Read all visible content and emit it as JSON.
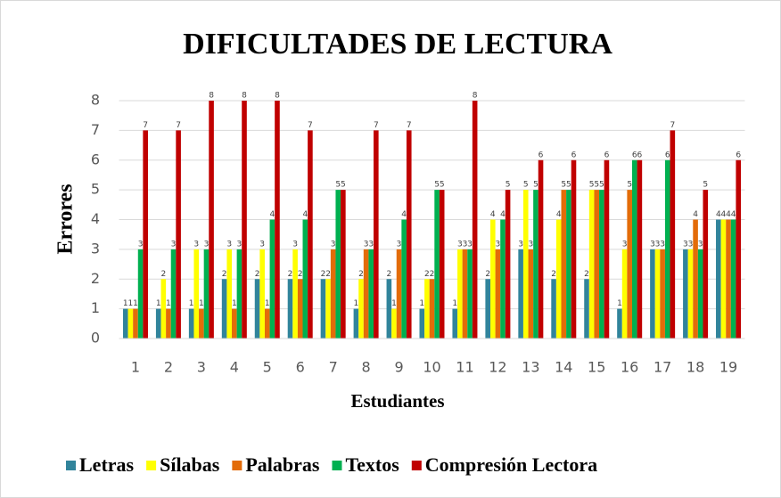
{
  "chart_data": {
    "type": "bar",
    "title": "DIFICULTADES DE LECTURA",
    "x_label": "Estudiantes",
    "y_label": "Errores",
    "categories": [
      "1",
      "2",
      "3",
      "4",
      "5",
      "6",
      "7",
      "8",
      "9",
      "10",
      "11",
      "12",
      "13",
      "14",
      "15",
      "16",
      "17",
      "18",
      "19"
    ],
    "series": [
      {
        "name": "Letras",
        "color": "#31849b",
        "values": [
          1,
          1,
          1,
          2,
          2,
          2,
          2,
          1,
          2,
          1,
          1,
          2,
          3,
          2,
          2,
          1,
          3,
          3,
          4
        ]
      },
      {
        "name": "Sílabas",
        "color": "#ffff00",
        "values": [
          1,
          2,
          3,
          3,
          3,
          3,
          2,
          2,
          1,
          2,
          3,
          4,
          5,
          4,
          5,
          3,
          3,
          3,
          4
        ]
      },
      {
        "name": "Palabras",
        "color": "#e36c09",
        "values": [
          1,
          1,
          1,
          1,
          1,
          2,
          3,
          3,
          3,
          2,
          3,
          3,
          3,
          5,
          5,
          5,
          3,
          4,
          4
        ]
      },
      {
        "name": "Textos",
        "color": "#00b050",
        "values": [
          3,
          3,
          3,
          3,
          4,
          4,
          5,
          3,
          4,
          5,
          3,
          4,
          5,
          5,
          5,
          6,
          6,
          3,
          4
        ]
      },
      {
        "name": "Compresión Lectora",
        "color": "#c00000",
        "values": [
          7,
          7,
          8,
          8,
          8,
          7,
          5,
          7,
          7,
          5,
          8,
          5,
          6,
          6,
          6,
          6,
          7,
          5,
          6
        ]
      }
    ],
    "ylim": [
      0,
      8
    ],
    "yticks": [
      0,
      1,
      2,
      3,
      4,
      5,
      6,
      7,
      8
    ],
    "grid": true,
    "legend": "bottom"
  }
}
